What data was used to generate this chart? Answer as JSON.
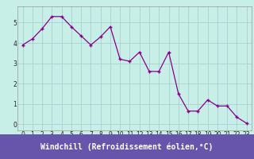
{
  "x": [
    0,
    1,
    2,
    3,
    4,
    5,
    6,
    7,
    8,
    9,
    10,
    11,
    12,
    13,
    14,
    15,
    16,
    17,
    18,
    19,
    20,
    21,
    22,
    23
  ],
  "y": [
    3.9,
    4.2,
    4.7,
    5.3,
    5.3,
    4.8,
    4.35,
    3.9,
    4.3,
    4.8,
    3.2,
    3.1,
    3.55,
    2.6,
    2.6,
    3.55,
    1.5,
    0.65,
    0.65,
    1.2,
    0.9,
    0.9,
    0.35,
    0.05
  ],
  "line_color": "#880088",
  "marker": "+",
  "bg_color": "#C8EEE8",
  "grid_color": "#A0CCCC",
  "xlabel": "Windchill (Refroidissement éolien,°C)",
  "xlabel_bg": "#6655AA",
  "xlabel_color": "#FFFFFF",
  "ylim": [
    -0.3,
    5.8
  ],
  "xlim": [
    -0.5,
    23.5
  ],
  "yticks": [
    0,
    1,
    2,
    3,
    4,
    5
  ],
  "xticks": [
    0,
    1,
    2,
    3,
    4,
    5,
    6,
    7,
    8,
    9,
    10,
    11,
    12,
    13,
    14,
    15,
    16,
    17,
    18,
    19,
    20,
    21,
    22,
    23
  ],
  "tick_fontsize": 5.5,
  "xlabel_fontsize": 7.0,
  "fig_width": 3.2,
  "fig_height": 2.0,
  "dpi": 100
}
